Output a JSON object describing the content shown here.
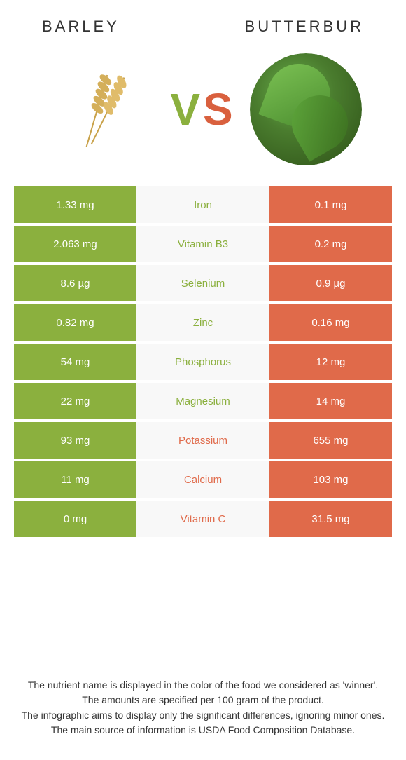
{
  "header": {
    "left_title": "Barley",
    "right_title": "Butterbur",
    "vs_v": "V",
    "vs_s": "S"
  },
  "colors": {
    "left": "#8bb03e",
    "right": "#e06a4a",
    "mid_bg": "#f8f8f8",
    "white": "#ffffff"
  },
  "rows": [
    {
      "left": "1.33 mg",
      "label": "Iron",
      "right": "0.1 mg",
      "winner": "left"
    },
    {
      "left": "2.063 mg",
      "label": "Vitamin B3",
      "right": "0.2 mg",
      "winner": "left"
    },
    {
      "left": "8.6 µg",
      "label": "Selenium",
      "right": "0.9 µg",
      "winner": "left"
    },
    {
      "left": "0.82 mg",
      "label": "Zinc",
      "right": "0.16 mg",
      "winner": "left"
    },
    {
      "left": "54 mg",
      "label": "Phosphorus",
      "right": "12 mg",
      "winner": "left"
    },
    {
      "left": "22 mg",
      "label": "Magnesium",
      "right": "14 mg",
      "winner": "left"
    },
    {
      "left": "93 mg",
      "label": "Potassium",
      "right": "655 mg",
      "winner": "right"
    },
    {
      "left": "11 mg",
      "label": "Calcium",
      "right": "103 mg",
      "winner": "right"
    },
    {
      "left": "0 mg",
      "label": "Vitamin C",
      "right": "31.5 mg",
      "winner": "right"
    }
  ],
  "footnotes": [
    "The nutrient name is displayed in the color of the food we considered as 'winner'.",
    "The amounts are specified per 100 gram of the product.",
    "The infographic aims to display only the significant differences, ignoring minor ones.",
    "The main source of information is USDA Food Composition Database."
  ]
}
